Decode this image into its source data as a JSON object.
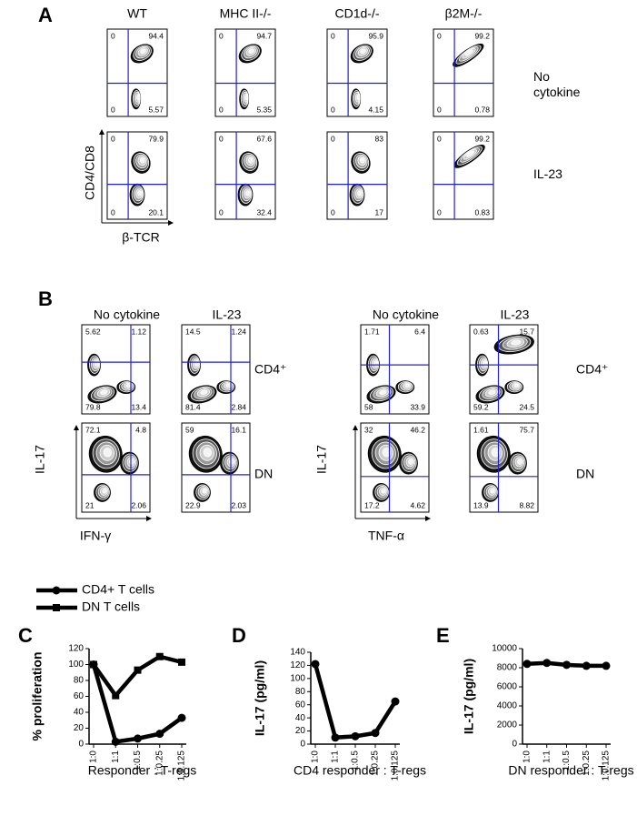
{
  "panel_a": {
    "label": "A",
    "columns": [
      "WT",
      "MHC II-/-",
      "CD1d-/-",
      "β2M-/-"
    ],
    "rows": [
      "No cytokine",
      "IL-23"
    ],
    "y_axis": "CD4/CD8",
    "x_axis": "β-TCR",
    "plots": [
      [
        {
          "tl": "0",
          "tr": "94.4",
          "bl": "0",
          "br": "5.57"
        },
        {
          "tl": "0",
          "tr": "94.7",
          "bl": "0",
          "br": "5.35"
        },
        {
          "tl": "0",
          "tr": "95.9",
          "bl": "0",
          "br": "4.15"
        },
        {
          "tl": "0",
          "tr": "99.2",
          "bl": "0",
          "br": "0.78"
        }
      ],
      [
        {
          "tl": "0",
          "tr": "79.9",
          "bl": "0",
          "br": "20.1"
        },
        {
          "tl": "0",
          "tr": "67.6",
          "bl": "0",
          "br": "32.4"
        },
        {
          "tl": "0",
          "tr": "83",
          "bl": "0",
          "br": "17"
        },
        {
          "tl": "0",
          "tr": "99.2",
          "bl": "0",
          "br": "0.83"
        }
      ]
    ]
  },
  "panel_b": {
    "label": "B",
    "groups": [
      {
        "columns": [
          "No cytokine",
          "IL-23"
        ],
        "rows": [
          "CD4⁺",
          "DN"
        ],
        "y_axis": "IL-17",
        "x_axis": "IFN-γ",
        "plots": [
          [
            {
              "tl": "5.62",
              "tr": "1.12",
              "bl": "79.8",
              "br": "13.4"
            },
            {
              "tl": "14.5",
              "tr": "1.24",
              "bl": "81.4",
              "br": "2.84"
            }
          ],
          [
            {
              "tl": "72.1",
              "tr": "4.8",
              "bl": "21",
              "br": "2.06"
            },
            {
              "tl": "59",
              "tr": "16.1",
              "bl": "22.9",
              "br": "2.03"
            }
          ]
        ]
      },
      {
        "columns": [
          "No cytokine",
          "IL-23"
        ],
        "rows": [
          "CD4⁺",
          "DN"
        ],
        "y_axis": "IL-17",
        "x_axis": "TNF-α",
        "plots": [
          [
            {
              "tl": "1.71",
              "tr": "6.4",
              "bl": "58",
              "br": "33.9"
            },
            {
              "tl": "0.63",
              "tr": "15.7",
              "bl": "59.2",
              "br": "24.5"
            }
          ],
          [
            {
              "tl": "32",
              "tr": "46.2",
              "bl": "17.2",
              "br": "4.62"
            },
            {
              "tl": "1.61",
              "tr": "75.7",
              "bl": "13.9",
              "br": "8.82"
            }
          ]
        ]
      }
    ]
  },
  "chart_data": [
    {
      "type": "line",
      "panel_label": "C",
      "y_label": "% proliferation",
      "x_label": "Responder : T-regs",
      "categories": [
        "1:0",
        "1:1",
        "1:0.5",
        "1:0.25",
        "1:0.125"
      ],
      "ylim": [
        0,
        120
      ],
      "yticks": [
        0,
        20,
        40,
        60,
        80,
        100,
        120
      ],
      "series": [
        {
          "name": "CD4+ T cells",
          "color": "#000000",
          "marker": "circle",
          "values": [
            100,
            3,
            7,
            13,
            33
          ]
        },
        {
          "name": "DN T cells",
          "color": "#000000",
          "marker": "square",
          "values": [
            100,
            61,
            93,
            110,
            103
          ]
        }
      ]
    },
    {
      "type": "line",
      "panel_label": "D",
      "y_label": "IL-17 (pg/ml)",
      "x_label": "CD4 responder : T-regs",
      "categories": [
        "1:0",
        "1:1",
        "1:0.5",
        "1:0.25",
        "1:0.125"
      ],
      "ylim": [
        0,
        140
      ],
      "yticks": [
        0,
        20,
        40,
        60,
        80,
        100,
        120,
        140
      ],
      "series": [
        {
          "color": "#000000",
          "marker": "circle",
          "values": [
            122,
            10,
            12,
            17,
            65
          ]
        }
      ]
    },
    {
      "type": "line",
      "panel_label": "E",
      "y_label": "IL-17 (pg/ml)",
      "x_label": "DN responder : T-regs",
      "categories": [
        "1:0",
        "1:1",
        "1:0.5",
        "1:0.25",
        "1:0.125"
      ],
      "ylim": [
        0,
        10000
      ],
      "yticks": [
        0,
        2000,
        4000,
        6000,
        8000,
        10000
      ],
      "series": [
        {
          "color": "#000000",
          "marker": "circle",
          "values": [
            8400,
            8500,
            8300,
            8200,
            8200
          ]
        }
      ]
    }
  ]
}
